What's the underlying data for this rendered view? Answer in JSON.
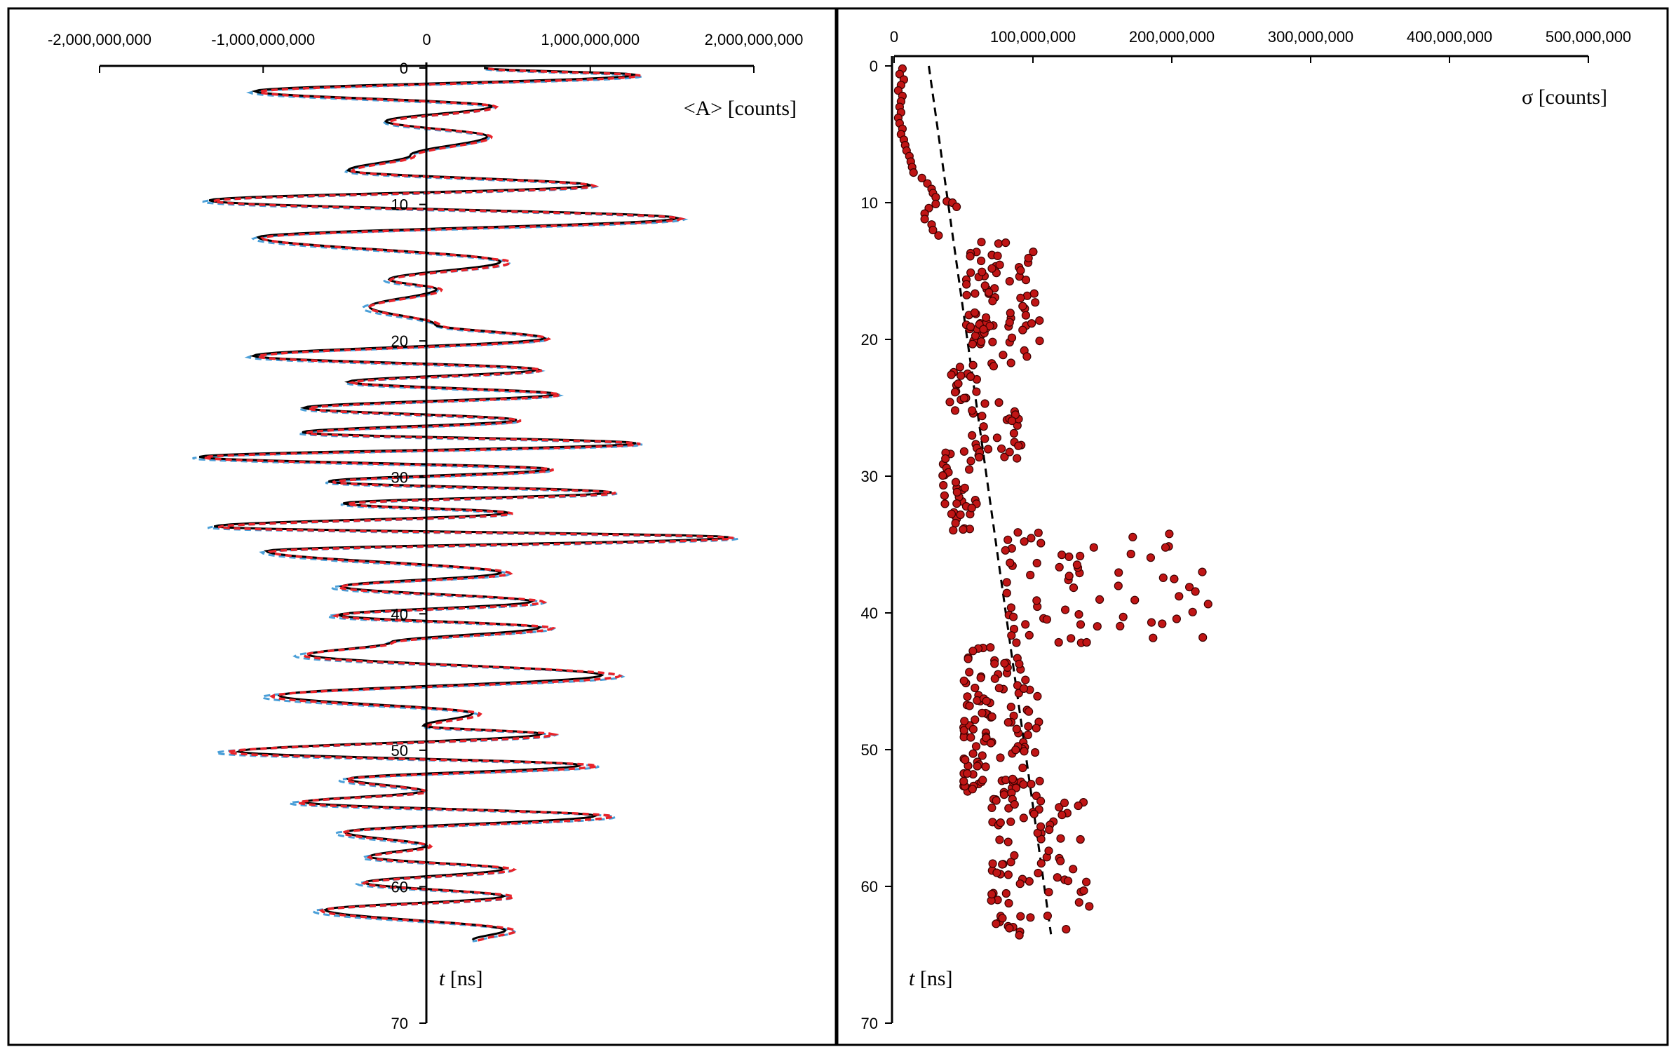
{
  "colors": {
    "background": "#ffffff",
    "axis": "#000000",
    "series_black": "#000000",
    "series_blue": "#4a9fd8",
    "series_red": "#e8232a",
    "marker_fill": "#c01515",
    "marker_edge": "#3a0000"
  },
  "chart_data": [
    {
      "id": "left",
      "type": "line",
      "orientation": "vertical-time",
      "xaxis": {
        "label": "<A> [counts]",
        "range": [
          -2000000000,
          2000000000
        ],
        "ticks": [
          -2000000000,
          -1000000000,
          0,
          1000000000,
          2000000000
        ],
        "tick_labels": [
          "-2,000,000,000",
          "-1,000,000,000",
          "0",
          "1,000,000,000",
          "2,000,000,000"
        ]
      },
      "yaxis": {
        "label_var": "t",
        "label_unit": " [ns]",
        "range": [
          0,
          70
        ],
        "ticks": [
          0,
          10,
          20,
          30,
          40,
          50,
          60,
          70
        ],
        "tick_labels": [
          "0",
          "10",
          "20",
          "30",
          "40",
          "50",
          "60",
          "70"
        ]
      },
      "series": [
        {
          "name": "signal (solid)",
          "style": "solid"
        },
        {
          "name": "signal (blue dashed)",
          "style": "dashed"
        },
        {
          "name": "signal (red dashed)",
          "style": "dashed"
        }
      ],
      "peaks": [
        {
          "t": 0.0,
          "a": 350000000
        },
        {
          "t": 0.5,
          "a": 1280000000
        },
        {
          "t": 1.7,
          "a": -1050000000
        },
        {
          "t": 2.8,
          "a": 400000000
        },
        {
          "t": 3.9,
          "a": -250000000
        },
        {
          "t": 5.0,
          "a": 370000000
        },
        {
          "t": 6.4,
          "a": -100000000
        },
        {
          "t": 7.5,
          "a": -480000000
        },
        {
          "t": 8.6,
          "a": 1000000000
        },
        {
          "t": 9.7,
          "a": -1330000000
        },
        {
          "t": 11.0,
          "a": 1530000000
        },
        {
          "t": 12.4,
          "a": -1030000000
        },
        {
          "t": 14.2,
          "a": 450000000
        },
        {
          "t": 15.5,
          "a": -230000000
        },
        {
          "t": 16.2,
          "a": 60000000
        },
        {
          "t": 17.5,
          "a": -350000000
        },
        {
          "t": 18.8,
          "a": 50000000
        },
        {
          "t": 19.8,
          "a": 720000000
        },
        {
          "t": 21.1,
          "a": -1060000000
        },
        {
          "t": 22.1,
          "a": 680000000
        },
        {
          "t": 23.0,
          "a": -480000000
        },
        {
          "t": 23.9,
          "a": 790000000
        },
        {
          "t": 24.9,
          "a": -750000000
        },
        {
          "t": 25.8,
          "a": 550000000
        },
        {
          "t": 26.7,
          "a": -760000000
        },
        {
          "t": 27.5,
          "a": 1280000000
        },
        {
          "t": 28.5,
          "a": -1390000000
        },
        {
          "t": 29.4,
          "a": 750000000
        },
        {
          "t": 30.3,
          "a": -600000000
        },
        {
          "t": 31.1,
          "a": 1130000000
        },
        {
          "t": 31.9,
          "a": -510000000
        },
        {
          "t": 32.6,
          "a": 500000000
        },
        {
          "t": 33.6,
          "a": -1300000000
        },
        {
          "t": 34.4,
          "a": 1850000000
        },
        {
          "t": 35.4,
          "a": -980000000
        },
        {
          "t": 37.0,
          "a": 450000000
        },
        {
          "t": 38.0,
          "a": -520000000
        },
        {
          "t": 39.1,
          "a": 640000000
        },
        {
          "t": 40.1,
          "a": -540000000
        },
        {
          "t": 41.0,
          "a": 690000000
        },
        {
          "t": 42.1,
          "a": -220000000
        },
        {
          "t": 43.0,
          "a": -720000000
        },
        {
          "t": 44.5,
          "a": 1070000000
        },
        {
          "t": 46.0,
          "a": -900000000
        },
        {
          "t": 47.3,
          "a": 280000000
        },
        {
          "t": 48.2,
          "a": -20000000
        },
        {
          "t": 48.8,
          "a": 700000000
        },
        {
          "t": 50.1,
          "a": -1150000000
        },
        {
          "t": 51.1,
          "a": 940000000
        },
        {
          "t": 52.1,
          "a": -480000000
        },
        {
          "t": 53.0,
          "a": -20000000
        },
        {
          "t": 53.8,
          "a": -750000000
        },
        {
          "t": 54.8,
          "a": 1030000000
        },
        {
          "t": 56.0,
          "a": -500000000
        },
        {
          "t": 57.0,
          "a": 0
        },
        {
          "t": 57.8,
          "a": -350000000
        },
        {
          "t": 58.7,
          "a": 470000000
        },
        {
          "t": 59.7,
          "a": -380000000
        },
        {
          "t": 60.7,
          "a": 470000000
        },
        {
          "t": 61.7,
          "a": -620000000
        },
        {
          "t": 63.2,
          "a": 480000000
        },
        {
          "t": 63.9,
          "a": 280000000
        }
      ]
    },
    {
      "id": "right",
      "type": "scatter",
      "orientation": "vertical-time",
      "xaxis": {
        "label": "σ [counts]",
        "range": [
          0,
          500000000
        ],
        "ticks": [
          0,
          100000000,
          200000000,
          300000000,
          400000000,
          500000000
        ],
        "tick_labels": [
          "0",
          "100,000,000",
          "200,000,000",
          "300,000,000",
          "400,000,000",
          "500,000,000"
        ]
      },
      "yaxis": {
        "label_var": "t",
        "label_unit": " [ns]",
        "range": [
          0,
          70
        ],
        "ticks": [
          0,
          10,
          20,
          30,
          40,
          50,
          60,
          70
        ],
        "tick_labels": [
          "0",
          "10",
          "20",
          "30",
          "40",
          "50",
          "60",
          "70"
        ]
      },
      "trend_line": {
        "style": "dashed",
        "start": {
          "t": 0,
          "sigma": 25000000
        },
        "end": {
          "t": 63.5,
          "sigma": 113000000
        }
      },
      "points_early": [
        [
          0.2,
          6000000
        ],
        [
          0.6,
          4000000
        ],
        [
          1.0,
          7000000
        ],
        [
          1.4,
          5000000
        ],
        [
          1.8,
          3000000
        ],
        [
          2.2,
          6000000
        ],
        [
          2.6,
          5000000
        ],
        [
          3.0,
          4000000
        ],
        [
          3.4,
          5000000
        ],
        [
          3.8,
          3000000
        ],
        [
          4.2,
          4000000
        ],
        [
          4.6,
          6000000
        ],
        [
          5.0,
          5000000
        ],
        [
          5.4,
          7000000
        ],
        [
          5.8,
          8000000
        ],
        [
          6.2,
          9000000
        ],
        [
          6.6,
          11000000
        ],
        [
          7.0,
          12000000
        ],
        [
          7.4,
          13000000
        ],
        [
          7.8,
          14000000
        ],
        [
          8.2,
          20000000
        ],
        [
          8.6,
          24000000
        ],
        [
          9.0,
          27000000
        ],
        [
          9.3,
          28000000
        ],
        [
          9.6,
          30000000
        ],
        [
          9.9,
          38000000
        ],
        [
          10.1,
          30000000
        ],
        [
          10.4,
          25000000
        ],
        [
          10.8,
          22000000
        ],
        [
          11.2,
          22000000
        ],
        [
          11.6,
          27000000
        ],
        [
          12.0,
          28000000
        ],
        [
          12.4,
          32000000
        ],
        [
          10.0,
          42000000
        ],
        [
          10.3,
          45000000
        ]
      ],
      "clusters": [
        {
          "t0": 12.8,
          "t1": 22.0,
          "s0": 52000000,
          "s1": 105000000,
          "n": 85
        },
        {
          "t0": 21.5,
          "t1": 25.5,
          "s0": 40000000,
          "s1": 60000000,
          "n": 18
        },
        {
          "t0": 24.5,
          "t1": 29.0,
          "s0": 55000000,
          "s1": 92000000,
          "n": 30
        },
        {
          "t0": 28.0,
          "t1": 34.0,
          "s0": 35000000,
          "s1": 62000000,
          "n": 38
        },
        {
          "t0": 34.0,
          "t1": 42.5,
          "s0": 80000000,
          "s1": 230000000,
          "n": 70
        },
        {
          "t0": 42.5,
          "t1": 53.5,
          "s0": 50000000,
          "s1": 105000000,
          "n": 120
        },
        {
          "t0": 53.5,
          "t1": 63.8,
          "s0": 70000000,
          "s1": 145000000,
          "n": 80
        }
      ]
    }
  ]
}
